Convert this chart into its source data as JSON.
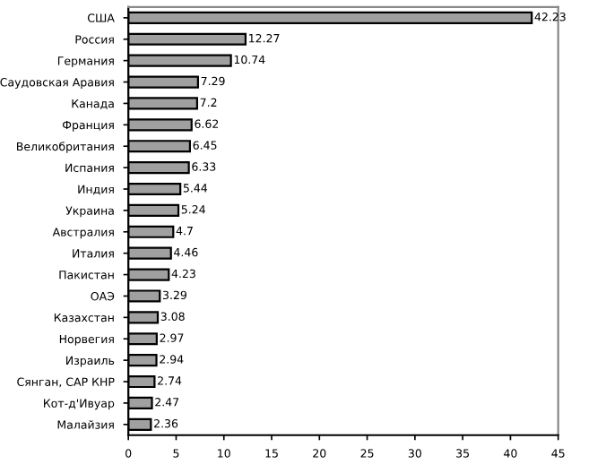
{
  "chart_data": {
    "type": "bar",
    "orientation": "horizontal",
    "categories": [
      "США",
      "Россия",
      "Германия",
      "Саудовская Аравия",
      "Канада",
      "Франция",
      "Великобритания",
      "Испания",
      "Индия",
      "Украина",
      "Австралия",
      "Италия",
      "Пакистан",
      "ОАЭ",
      "Казахстан",
      "Норвегия",
      "Израиль",
      "Сянган, САР КНР",
      "Кот-д'Ивуар",
      "Малайзия"
    ],
    "values": [
      42.23,
      12.27,
      10.74,
      7.29,
      7.2,
      6.62,
      6.45,
      6.33,
      5.44,
      5.24,
      4.7,
      4.46,
      4.23,
      3.29,
      3.08,
      2.97,
      2.94,
      2.74,
      2.47,
      2.36
    ],
    "color": "#a0a0a0",
    "data_labels": true,
    "xlim": [
      0,
      45
    ],
    "xticks": [
      0,
      5,
      10,
      15,
      20,
      25,
      30,
      35,
      40,
      45
    ],
    "grid": false,
    "legend": false
  }
}
